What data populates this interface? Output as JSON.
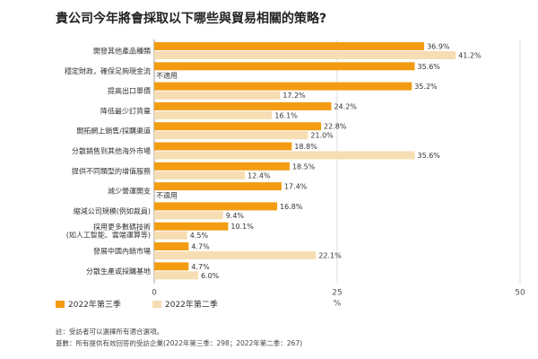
{
  "chart_data": {
    "type": "bar",
    "orientation": "horizontal",
    "title": "貴公司今年將會採取以下哪些與貿易相關的策略?",
    "xlabel": "%",
    "xlim": [
      0,
      50
    ],
    "xticks": [
      0,
      25,
      50
    ],
    "grid": true,
    "legend_position": "bottom-left",
    "categories": [
      "開發其他產品種類",
      "穩定財政，確保足夠現金流",
      "提高出口單價",
      "降低最少訂貨量",
      "開拓網上銷售/採購渠道",
      "分散銷售到其他海外市場",
      "提供不同類型的增值服務",
      "減少營運開支",
      "縮減公司規模(例如裁員)",
      "採用更多數碼技術(如人工智能、雲端運算等)",
      "發展中國內銷市場",
      "分散生產或採購基地"
    ],
    "series": [
      {
        "name": "2022年第三季",
        "color": "#F39C12",
        "values": [
          36.9,
          35.6,
          35.2,
          24.2,
          22.8,
          18.8,
          18.5,
          17.4,
          16.8,
          10.1,
          4.7,
          4.7
        ],
        "labels": [
          "36.9%",
          "35.6%",
          "35.2%",
          "24.2%",
          "22.8%",
          "18.8%",
          "18.5%",
          "17.4%",
          "16.8%",
          "10.1%",
          "4.7%",
          "4.7%"
        ]
      },
      {
        "name": "2022年第二季",
        "color": "#F7DDB3",
        "values": [
          41.2,
          null,
          17.2,
          16.1,
          21.0,
          35.6,
          12.4,
          null,
          9.4,
          4.5,
          22.1,
          6.0
        ],
        "labels": [
          "41.2%",
          "不適用",
          "17.2%",
          "16.1%",
          "21.0%",
          "35.6%",
          "12.4%",
          "不適用",
          "9.4%",
          "4.5%",
          "22.1%",
          "6.0%"
        ]
      }
    ],
    "notes": [
      "註：受訪者可以選擇所有適合選項。",
      "基數：所有提供有效回答的受訪企業(2022年第三季：298；2022年第二季：267)"
    ]
  }
}
